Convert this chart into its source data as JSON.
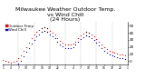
{
  "title": "Milwaukee Weather Outdoor Temp.\nvs Wind Chill\n(24 Hours)",
  "background_color": "#ffffff",
  "grid_color": "#888888",
  "outdoor_color": "#ff0000",
  "windchill_color": "#0000cc",
  "marker_color": "#000000",
  "ylim": [
    -5,
    55
  ],
  "xlim": [
    0,
    48
  ],
  "vline_positions": [
    6,
    12,
    18,
    24,
    30,
    36,
    42
  ],
  "title_fontsize": 4.5,
  "legend_fontsize": 2.8,
  "legend_entries": [
    "Outdoor Temp",
    "Wind Chill"
  ],
  "outdoor_temp": [
    2,
    0,
    -1,
    -2,
    -1,
    1,
    4,
    8,
    14,
    20,
    26,
    32,
    37,
    41,
    44,
    47,
    48,
    46,
    43,
    40,
    37,
    33,
    29,
    26,
    24,
    23,
    23,
    25,
    28,
    32,
    36,
    39,
    41,
    40,
    38,
    35,
    31,
    27,
    23,
    20,
    17,
    15,
    13,
    12,
    11,
    10,
    9,
    8
  ],
  "wind_chill": [
    -5,
    -7,
    -8,
    -9,
    -8,
    -6,
    -3,
    1,
    7,
    13,
    19,
    25,
    30,
    35,
    38,
    42,
    43,
    41,
    38,
    35,
    32,
    28,
    24,
    21,
    19,
    18,
    18,
    20,
    23,
    27,
    31,
    34,
    36,
    35,
    33,
    30,
    26,
    22,
    18,
    15,
    12,
    10,
    8,
    7,
    6,
    5,
    4,
    3
  ],
  "ytick_values": [
    0,
    10,
    20,
    30,
    40,
    50
  ],
  "ytick_labels": [
    "0",
    "10",
    "20",
    "30",
    "40",
    "50"
  ]
}
